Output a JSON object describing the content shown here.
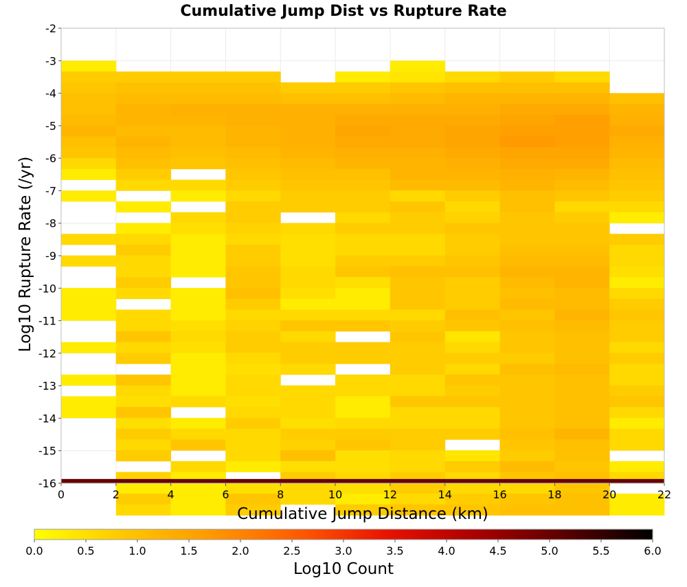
{
  "chart_data": {
    "type": "heatmap",
    "title": "Cumulative Jump Dist vs Rupture Rate",
    "xlabel": "Cumulative Jump Distance (km)",
    "ylabel": "Log10 Rupture Rate (/yr)",
    "xlim": [
      0,
      22
    ],
    "ylim": [
      -16,
      -2
    ],
    "x_ticks": [
      "0",
      "2",
      "4",
      "6",
      "8",
      "10",
      "12",
      "14",
      "16",
      "18",
      "20",
      "22"
    ],
    "y_ticks": [
      "-2",
      "-3",
      "-4",
      "-5",
      "-6",
      "-7",
      "-8",
      "-9",
      "-10",
      "-11",
      "-12",
      "-13",
      "-14",
      "-15",
      "-16"
    ],
    "x_bin_width": 2,
    "y_bin_height": 0.333,
    "grid": true,
    "colorbar": {
      "label": "Log10 Count",
      "range": [
        0,
        6
      ],
      "ticks": [
        "0.0",
        "0.5",
        "1.0",
        "1.5",
        "2.0",
        "2.5",
        "3.0",
        "3.5",
        "4.0",
        "4.5",
        "5.0",
        "5.5",
        "6.0"
      ],
      "colors": [
        "#ffff00",
        "#ffc800",
        "#ff9900",
        "#ff5a00",
        "#e81200",
        "#aa0000",
        "#5a0000",
        "#000000"
      ]
    },
    "columns": [
      {
        "x": 0,
        "counts": [
          0.3,
          0.8,
          0.9,
          1.0,
          1.0,
          1.1,
          1.2,
          1.0,
          0.9,
          0.6,
          0.3,
          null,
          0.3,
          null,
          null,
          null,
          0.6,
          null,
          0.6,
          null,
          null,
          0.3,
          0.3,
          0.3,
          null,
          null,
          0.3,
          null,
          null,
          0.3,
          null,
          0.3,
          0.3,
          null,
          null,
          null,
          null,
          null,
          null,
          null,
          null,
          null
        ]
      },
      {
        "x": 2,
        "counts": [
          null,
          0.8,
          1.0,
          1.1,
          1.2,
          1.2,
          1.1,
          1.2,
          1.1,
          1.0,
          0.8,
          0.6,
          null,
          0.3,
          null,
          0.3,
          0.6,
          0.8,
          0.6,
          0.6,
          0.8,
          0.6,
          null,
          0.6,
          0.6,
          0.9,
          0.6,
          0.8,
          null,
          0.9,
          0.6,
          0.5,
          0.9,
          0.5,
          0.8,
          0.6,
          0.8,
          null,
          0.7,
          0.3,
          0.8,
          0.6
        ]
      },
      {
        "x": 4,
        "counts": [
          null,
          0.8,
          1.0,
          1.1,
          1.3,
          1.2,
          1.1,
          1.1,
          1.0,
          0.9,
          null,
          0.6,
          0.3,
          null,
          0.6,
          0.5,
          0.3,
          0.3,
          0.3,
          0.3,
          null,
          0.3,
          0.3,
          0.3,
          0.5,
          0.6,
          0.5,
          0.3,
          0.3,
          0.3,
          0.3,
          0.6,
          null,
          0.3,
          0.6,
          0.9,
          null,
          0.6,
          0.3,
          0.3,
          0.3,
          0.3
        ]
      },
      {
        "x": 6,
        "counts": [
          null,
          0.8,
          1.0,
          1.1,
          1.3,
          1.3,
          1.2,
          1.2,
          1.1,
          1.0,
          0.9,
          0.8,
          0.6,
          0.8,
          0.8,
          0.7,
          0.6,
          0.8,
          0.8,
          0.9,
          0.9,
          1.0,
          0.8,
          0.6,
          0.7,
          0.8,
          0.8,
          0.6,
          0.5,
          0.6,
          0.6,
          0.5,
          0.6,
          0.8,
          0.6,
          0.6,
          0.6,
          0.3,
          null,
          0.5,
          0.9,
          0.8
        ]
      },
      {
        "x": 8,
        "counts": [
          null,
          null,
          0.8,
          1.0,
          1.3,
          1.3,
          1.3,
          1.3,
          1.2,
          1.1,
          1.0,
          0.9,
          0.8,
          0.8,
          null,
          0.6,
          0.5,
          0.5,
          0.5,
          0.6,
          0.6,
          0.5,
          0.3,
          0.6,
          0.9,
          0.6,
          0.8,
          0.8,
          0.6,
          null,
          0.6,
          0.6,
          0.6,
          0.5,
          0.8,
          0.7,
          1.0,
          0.5,
          0.8,
          0.6,
          0.6,
          null
        ]
      },
      {
        "x": 10,
        "counts": [
          null,
          0.3,
          0.8,
          1.0,
          1.3,
          1.4,
          1.5,
          1.4,
          1.3,
          1.2,
          1.0,
          0.9,
          0.8,
          0.8,
          0.6,
          0.8,
          0.6,
          0.6,
          0.8,
          0.9,
          0.5,
          0.3,
          0.3,
          0.6,
          0.9,
          null,
          0.8,
          0.8,
          null,
          0.6,
          0.6,
          0.3,
          0.3,
          0.6,
          0.8,
          0.9,
          0.5,
          0.5,
          0.6,
          0.5,
          0.3,
          0.8
        ]
      },
      {
        "x": 12,
        "counts": [
          0.3,
          0.4,
          0.9,
          1.1,
          1.3,
          1.4,
          1.4,
          1.4,
          1.3,
          1.2,
          1.2,
          1.1,
          0.6,
          0.9,
          0.8,
          0.8,
          0.6,
          0.6,
          0.8,
          1.0,
          0.9,
          0.9,
          0.9,
          0.6,
          0.8,
          0.9,
          0.8,
          0.8,
          0.8,
          0.6,
          0.6,
          0.9,
          0.6,
          0.6,
          0.8,
          0.8,
          0.6,
          0.6,
          0.8,
          0.8,
          0.6,
          0.9
        ]
      },
      {
        "x": 14,
        "counts": [
          null,
          0.6,
          1.0,
          1.2,
          1.3,
          1.4,
          1.5,
          1.5,
          1.4,
          1.3,
          1.2,
          1.1,
          0.8,
          0.6,
          0.7,
          0.9,
          0.8,
          0.8,
          0.9,
          1.0,
          0.8,
          0.8,
          0.8,
          1.0,
          0.9,
          0.4,
          0.6,
          0.8,
          0.6,
          0.9,
          0.8,
          0.9,
          0.6,
          0.6,
          0.8,
          null,
          0.4,
          0.8,
          0.6,
          0.6,
          0.8,
          0.9
        ]
      },
      {
        "x": 16,
        "counts": [
          null,
          0.8,
          1.0,
          1.2,
          1.4,
          1.5,
          1.6,
          1.7,
          1.5,
          1.4,
          1.3,
          1.2,
          1.0,
          1.0,
          0.9,
          0.9,
          0.9,
          1.0,
          1.1,
          1.2,
          1.1,
          1.0,
          1.1,
          0.9,
          1.0,
          0.9,
          0.9,
          0.8,
          1.0,
          0.9,
          0.9,
          0.9,
          0.9,
          0.9,
          1.0,
          0.9,
          0.8,
          1.1,
          0.9,
          0.6,
          0.9,
          1.0
        ]
      },
      {
        "x": 18,
        "counts": [
          null,
          0.6,
          1.0,
          1.2,
          1.4,
          1.6,
          1.6,
          1.6,
          1.5,
          1.4,
          1.2,
          1.1,
          0.9,
          0.6,
          0.8,
          0.9,
          0.9,
          1.0,
          1.1,
          1.2,
          1.2,
          1.1,
          1.1,
          1.2,
          1.1,
          1.0,
          1.0,
          1.0,
          1.1,
          1.0,
          1.0,
          1.0,
          1.0,
          1.0,
          1.2,
          1.0,
          1.0,
          0.9,
          1.0,
          0.9,
          1.0,
          1.0
        ]
      },
      {
        "x": 20,
        "counts": [
          null,
          null,
          null,
          1.0,
          1.2,
          1.3,
          1.4,
          1.3,
          1.2,
          1.1,
          1.0,
          0.9,
          0.8,
          0.6,
          0.3,
          null,
          0.8,
          0.6,
          0.6,
          0.5,
          0.3,
          0.6,
          0.8,
          0.9,
          0.8,
          0.8,
          0.6,
          0.8,
          0.6,
          0.6,
          0.8,
          0.9,
          0.6,
          0.3,
          0.6,
          0.6,
          null,
          0.3,
          0.6,
          null,
          0.3,
          0.3
        ]
      }
    ],
    "bottom_row": {
      "y": -16,
      "x_range": [
        0,
        22
      ],
      "value": 5.0
    }
  }
}
